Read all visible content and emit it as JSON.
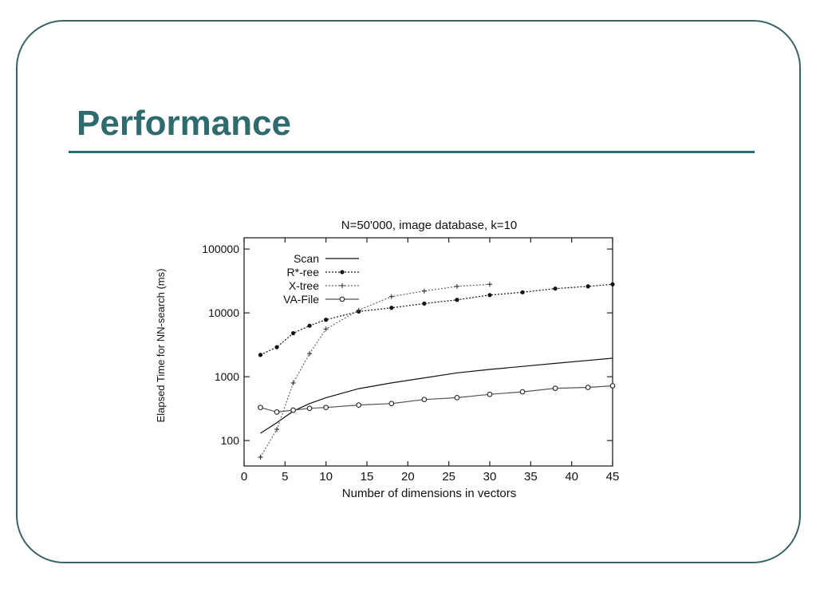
{
  "slide": {
    "title": "Performance",
    "colors": {
      "title": "#2f6b6e",
      "frame": "#3b6365",
      "rule": "#2f6b6e"
    }
  },
  "chart_data": {
    "type": "line",
    "title": "N=50'000, image database, k=10",
    "xlabel": "Number of dimensions in vectors",
    "ylabel": "Elapsed Time for NN-search (ms)",
    "xlim": [
      0,
      45
    ],
    "ylim": [
      40,
      150000
    ],
    "yscale": "log",
    "x_ticks": [
      0,
      5,
      10,
      15,
      20,
      25,
      30,
      35,
      40,
      45
    ],
    "y_ticks": [
      100,
      1000,
      10000,
      100000
    ],
    "y_tick_labels": [
      "100",
      "1000",
      "10000",
      "100000"
    ],
    "grid": false,
    "legend_position": "top-left",
    "series": [
      {
        "name": "Scan",
        "marker": "none",
        "dash": "solid",
        "x": [
          2,
          4,
          6,
          8,
          10,
          14,
          18,
          22,
          26,
          30,
          34,
          38,
          42,
          45
        ],
        "y": [
          130,
          190,
          290,
          380,
          470,
          650,
          800,
          960,
          1150,
          1300,
          1450,
          1620,
          1800,
          1950
        ]
      },
      {
        "name": "R*-ree",
        "marker": "dot",
        "dash": "dotted",
        "x": [
          2,
          4,
          6,
          8,
          10,
          14,
          18,
          22,
          26,
          30,
          34,
          38,
          42,
          45
        ],
        "y": [
          2200,
          2900,
          4800,
          6300,
          7800,
          10500,
          12000,
          14000,
          16000,
          19000,
          21000,
          24000,
          26000,
          28000
        ]
      },
      {
        "name": "X-tree",
        "marker": "plus",
        "dash": "dotted",
        "x": [
          2,
          4,
          6,
          8,
          10,
          14,
          18,
          22,
          26,
          30
        ],
        "y": [
          55,
          150,
          800,
          2300,
          5600,
          11000,
          18000,
          22000,
          26000,
          28000
        ]
      },
      {
        "name": "VA-File",
        "marker": "circle",
        "dash": "solid",
        "x": [
          2,
          4,
          6,
          8,
          10,
          14,
          18,
          22,
          26,
          30,
          34,
          38,
          42,
          45
        ],
        "y": [
          330,
          280,
          300,
          320,
          330,
          360,
          380,
          440,
          470,
          530,
          580,
          660,
          680,
          720
        ]
      }
    ]
  }
}
